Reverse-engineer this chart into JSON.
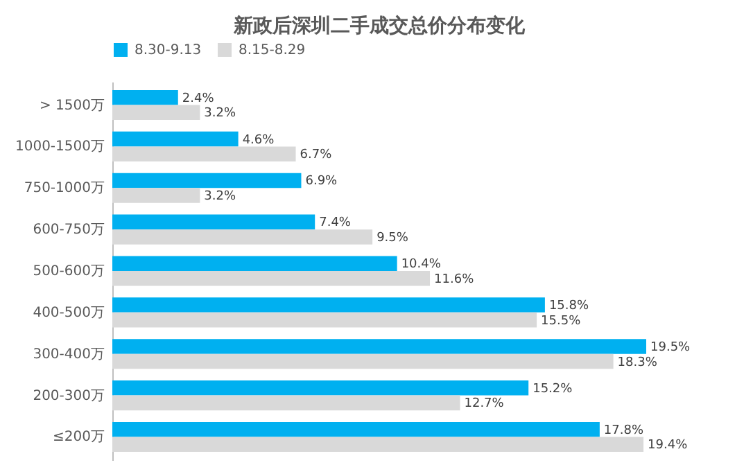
{
  "chart_data": {
    "type": "bar",
    "orientation": "horizontal",
    "title": "新政后深圳二手成交总价分布变化",
    "categories": [
      "> 1500万",
      "1000-1500万",
      "750-1000万",
      "600-750万",
      "500-600万",
      "400-500万",
      "300-400万",
      "200-300万",
      "≤200万"
    ],
    "series": [
      {
        "name": "8.30-9.13",
        "color": "#00b0f0",
        "values": [
          2.4,
          4.6,
          6.9,
          7.4,
          10.4,
          15.8,
          19.5,
          15.2,
          17.8
        ],
        "value_labels": [
          "2.4%",
          "4.6%",
          "6.9%",
          "7.4%",
          "10.4%",
          "15.8%",
          "19.5%",
          "15.2%",
          "17.8%"
        ]
      },
      {
        "name": "8.15-8.29",
        "color": "#d9d9d9",
        "values": [
          3.2,
          6.7,
          3.2,
          9.5,
          11.6,
          15.5,
          18.3,
          12.7,
          19.4
        ],
        "value_labels": [
          "3.2%",
          "6.7%",
          "3.2%",
          "9.5%",
          "11.6%",
          "15.5%",
          "18.3%",
          "12.7%",
          "19.4%"
        ]
      }
    ],
    "legend": "top",
    "grid": false
  }
}
